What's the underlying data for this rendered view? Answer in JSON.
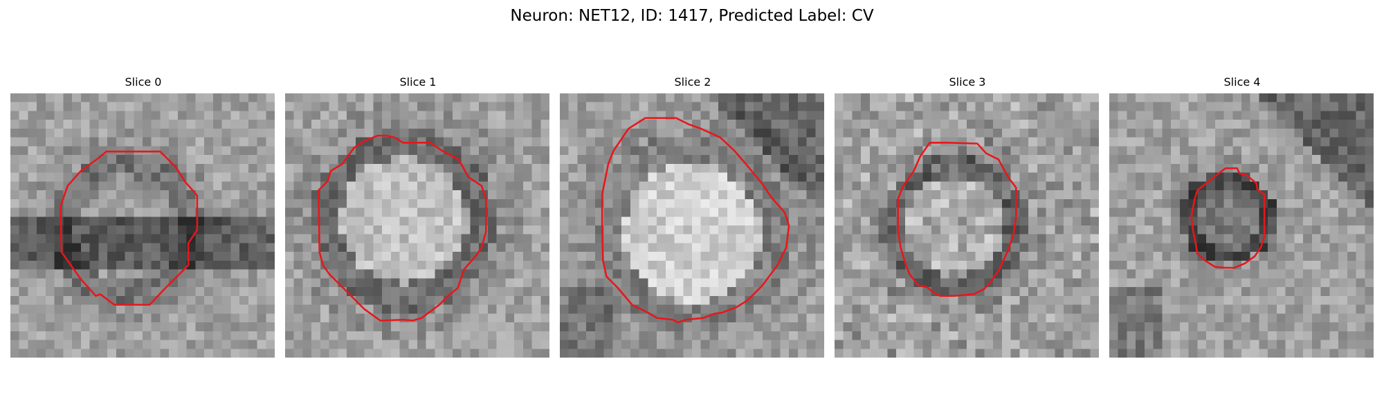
{
  "figure": {
    "title": "Neuron: NET12, ID: 1417, Predicted Label: CV"
  },
  "contour_color": "#e8161b",
  "panels": [
    {
      "title": "Slice 0",
      "seed": 11,
      "center_brightness": 0.58,
      "ring_darkness": 0.38,
      "band": "horizontal-dark"
    },
    {
      "title": "Slice 1",
      "seed": 23,
      "center_brightness": 0.78,
      "ring_darkness": 0.35,
      "band": "none"
    },
    {
      "title": "Slice 2",
      "seed": 37,
      "center_brightness": 0.86,
      "ring_darkness": 0.45,
      "band": "corner-dark"
    },
    {
      "title": "Slice 3",
      "seed": 41,
      "center_brightness": 0.68,
      "ring_darkness": 0.32,
      "band": "noisy"
    },
    {
      "title": "Slice 4",
      "seed": 59,
      "center_brightness": 0.42,
      "ring_darkness": 0.15,
      "band": "corner-dark"
    }
  ]
}
